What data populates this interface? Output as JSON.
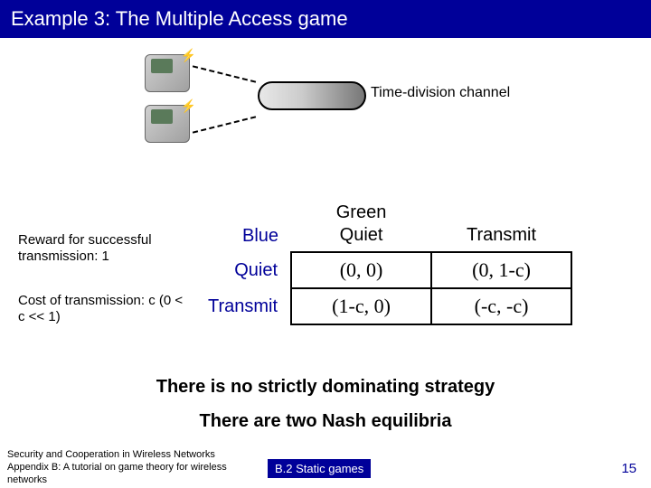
{
  "title": "Example 3: The Multiple Access game",
  "channel_label": "Time-division channel",
  "reward_text": "Reward for successful transmission: 1",
  "cost_text": "Cost of transmission: c (0 < c << 1)",
  "matrix": {
    "col_player": "Green",
    "row_player": "Blue",
    "col_headers": [
      "Quiet",
      "Transmit"
    ],
    "row_headers": [
      "Quiet",
      "Transmit"
    ],
    "cells": [
      [
        "(0, 0)",
        "(0, 1-c)"
      ],
      [
        "(1-c, 0)",
        "(-c, -c)"
      ]
    ]
  },
  "statement1": "There is no strictly dominating strategy",
  "statement2": "There are two Nash equilibria",
  "footer": {
    "left_line1": "Security and Cooperation in Wireless Networks",
    "left_line2": "Appendix B: A tutorial on game theory for wireless networks",
    "mid": "B.2 Static games",
    "page": "15"
  },
  "colors": {
    "banner": "#000099",
    "blue_text": "#000099",
    "background": "#ffffff"
  }
}
